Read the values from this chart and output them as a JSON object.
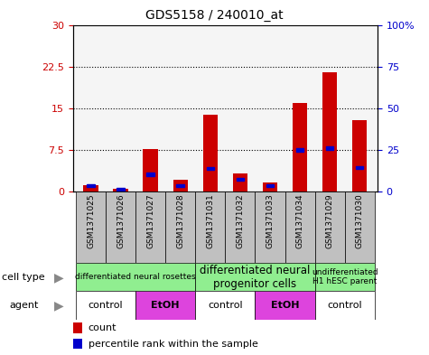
{
  "title": "GDS5158 / 240010_at",
  "samples": [
    "GSM1371025",
    "GSM1371026",
    "GSM1371027",
    "GSM1371028",
    "GSM1371031",
    "GSM1371032",
    "GSM1371033",
    "GSM1371034",
    "GSM1371029",
    "GSM1371030"
  ],
  "count_values": [
    1.1,
    0.55,
    7.6,
    2.1,
    13.8,
    3.3,
    1.7,
    16.0,
    21.5,
    12.8
  ],
  "percentile_values": [
    3.5,
    1.5,
    10.5,
    3.5,
    14.0,
    7.5,
    3.5,
    25.0,
    26.0,
    14.5
  ],
  "left_ylim": [
    0,
    30
  ],
  "right_ylim": [
    0,
    100
  ],
  "left_yticks": [
    0,
    7.5,
    15,
    22.5,
    30
  ],
  "left_yticklabels": [
    "0",
    "7.5",
    "15",
    "22.5",
    "30"
  ],
  "right_yticks": [
    0,
    25,
    50,
    75,
    100
  ],
  "right_yticklabels": [
    "0",
    "25",
    "50",
    "75",
    "100%"
  ],
  "left_ytick_color": "#cc0000",
  "right_ytick_color": "#0000cc",
  "bar_color": "#cc0000",
  "percentile_color": "#0000cc",
  "bar_width": 0.5,
  "cell_type_bg": "#90ee90",
  "agent_bg_etoh": "#dd44dd",
  "sample_bg": "#c0c0c0",
  "legend_count_color": "#cc0000",
  "legend_percentile_color": "#0000cc",
  "ct_groups": [
    {
      "label": "differentiated neural rosettes",
      "start": 0,
      "end": 3,
      "fontsize": 6.5,
      "bold": false
    },
    {
      "label": "differentiated neural\nprogenitor cells",
      "start": 4,
      "end": 7,
      "fontsize": 8.5,
      "bold": false
    },
    {
      "label": "undifferentiated\nH1 hESC parent",
      "start": 8,
      "end": 9,
      "fontsize": 6.5,
      "bold": false
    }
  ],
  "agent_groups": [
    {
      "label": "control",
      "start": 0,
      "end": 1,
      "etoh": false
    },
    {
      "label": "EtOH",
      "start": 2,
      "end": 3,
      "etoh": true
    },
    {
      "label": "control",
      "start": 4,
      "end": 5,
      "etoh": false
    },
    {
      "label": "EtOH",
      "start": 6,
      "end": 7,
      "etoh": true
    },
    {
      "label": "control",
      "start": 8,
      "end": 9,
      "etoh": false
    }
  ]
}
